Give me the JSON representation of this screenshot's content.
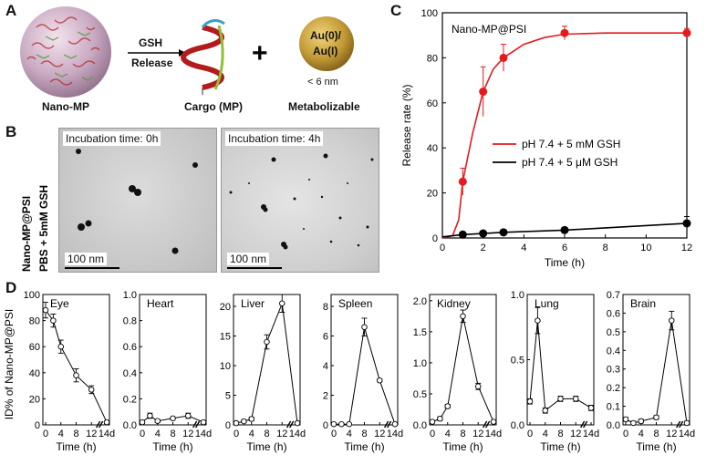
{
  "panel_labels": [
    "A",
    "B",
    "C",
    "D"
  ],
  "panelA": {
    "nano_label": "Nano-MP",
    "arrow_top": "GSH",
    "arrow_bottom": "Release",
    "cargo_label": "Cargo (MP)",
    "plus": "+",
    "au_line1": "Au(0)/",
    "au_line2": "Au(I)",
    "size_note": "< 6 nm",
    "metab_label": "Metabolizable",
    "colors": {
      "sphere": "#c5b0c3",
      "gold": "#c19a35",
      "helix": "#b21c1c"
    }
  },
  "panelB": {
    "side_line1": "Nano-MP@PSI",
    "side_line2": "PBS + 5mM GSH",
    "img0_label": "Incubation time: 0h",
    "img4_label": "Incubation time: 4h",
    "scalebar": "100 nm"
  },
  "chart_data": [
    {
      "id": "C",
      "type": "line",
      "title": "Nano-MP@PSI",
      "xlabel": "Time (h)",
      "ylabel": "Release rate (%)",
      "xlim": [
        0,
        12
      ],
      "ylim": [
        0,
        100
      ],
      "xticks": [
        0,
        2,
        4,
        6,
        8,
        10,
        12
      ],
      "yticks": [
        0,
        20,
        40,
        60,
        80,
        100
      ],
      "legend": "center-right",
      "series": [
        {
          "name": "pH 7.4 + 5 mM GSH",
          "color": "#e41a1c",
          "x": [
            1,
            2,
            3,
            6,
            12
          ],
          "y": [
            25,
            65,
            80,
            91,
            91
          ],
          "err": [
            6,
            11,
            6,
            3,
            2
          ]
        },
        {
          "name": "pH 7.4 + 5 μM GSH",
          "color": "#000000",
          "x": [
            1,
            2,
            3,
            6,
            12
          ],
          "y": [
            1.5,
            2,
            2.5,
            3.5,
            6.5
          ],
          "err": [
            0.5,
            0.5,
            0.5,
            0.8,
            3
          ]
        }
      ]
    },
    {
      "id": "D",
      "type": "line",
      "ylabel": "ID% of Nano-MP@PSI",
      "xlabel": "Time (h)",
      "xticks": [
        "0",
        "4",
        "8",
        "12",
        "14d"
      ],
      "plots": [
        {
          "name": "Eye",
          "ylim": [
            0,
            100
          ],
          "yticks": [
            "0",
            "20",
            "40",
            "60",
            "80",
            "100"
          ],
          "x": [
            0,
            2,
            4,
            8,
            12,
            16
          ],
          "y": [
            88,
            80,
            60,
            38,
            27,
            2
          ],
          "err": [
            6,
            5,
            5,
            5,
            3,
            1
          ]
        },
        {
          "name": "Heart",
          "ylim": [
            0,
            1.0
          ],
          "yticks": [
            "0.0",
            "0.2",
            "0.4",
            "0.6",
            "0.8",
            "1.0"
          ],
          "x": [
            0,
            2,
            4,
            8,
            12,
            16
          ],
          "y": [
            0.02,
            0.07,
            0.03,
            0.05,
            0.07,
            0.02
          ],
          "err": [
            0.01,
            0.02,
            0.01,
            0.01,
            0.02,
            0.01
          ]
        },
        {
          "name": "Liver",
          "ylim": [
            0,
            22
          ],
          "yticks": [
            "0",
            "5",
            "10",
            "15",
            "20"
          ],
          "x": [
            0,
            2,
            4,
            8,
            12,
            16
          ],
          "y": [
            0.3,
            0.6,
            1,
            14,
            20.5,
            0.3
          ],
          "err": [
            0.2,
            0.2,
            0.3,
            1.2,
            1.5,
            0.2
          ]
        },
        {
          "name": "Spleen",
          "ylim": [
            0,
            8.8
          ],
          "yticks": [
            "0",
            "2",
            "4",
            "6",
            "8"
          ],
          "x": [
            0,
            2,
            4,
            8,
            12,
            16
          ],
          "y": [
            0.05,
            0.05,
            0.05,
            6.6,
            3,
            0.05
          ],
          "err": [
            0.05,
            0.05,
            0.05,
            0.6,
            0.1,
            0.05
          ]
        },
        {
          "name": "Kidney",
          "ylim": [
            0,
            2.1
          ],
          "yticks": [
            "0.0",
            "0.5",
            "1.0",
            "1.5",
            "2.0"
          ],
          "x": [
            0,
            2,
            4,
            8,
            12,
            16
          ],
          "y": [
            0.05,
            0.1,
            0.3,
            1.75,
            0.62,
            0.05
          ],
          "err": [
            0.02,
            0.03,
            0.03,
            0.1,
            0.05,
            0.02
          ]
        },
        {
          "name": "Lung",
          "ylim": [
            0,
            1.0
          ],
          "yticks": [
            "0.0",
            "0.5",
            "1.0"
          ],
          "x": [
            0,
            2,
            4,
            8,
            12,
            16
          ],
          "y": [
            0.18,
            0.8,
            0.11,
            0.2,
            0.2,
            0.13
          ],
          "err": [
            0.02,
            0.1,
            0.02,
            0.02,
            0.02,
            0.02
          ]
        },
        {
          "name": "Brain",
          "ylim": [
            0,
            0.7
          ],
          "yticks": [
            "0.0",
            "0.1",
            "0.2",
            "0.3",
            "0.4",
            "0.5",
            "0.6",
            "0.7"
          ],
          "x": [
            0,
            2,
            4,
            8,
            12,
            16
          ],
          "y": [
            0.03,
            0.01,
            0.02,
            0.04,
            0.56,
            0.01
          ],
          "err": [
            0.01,
            0.01,
            0.01,
            0.01,
            0.05,
            0.01
          ]
        }
      ]
    }
  ]
}
